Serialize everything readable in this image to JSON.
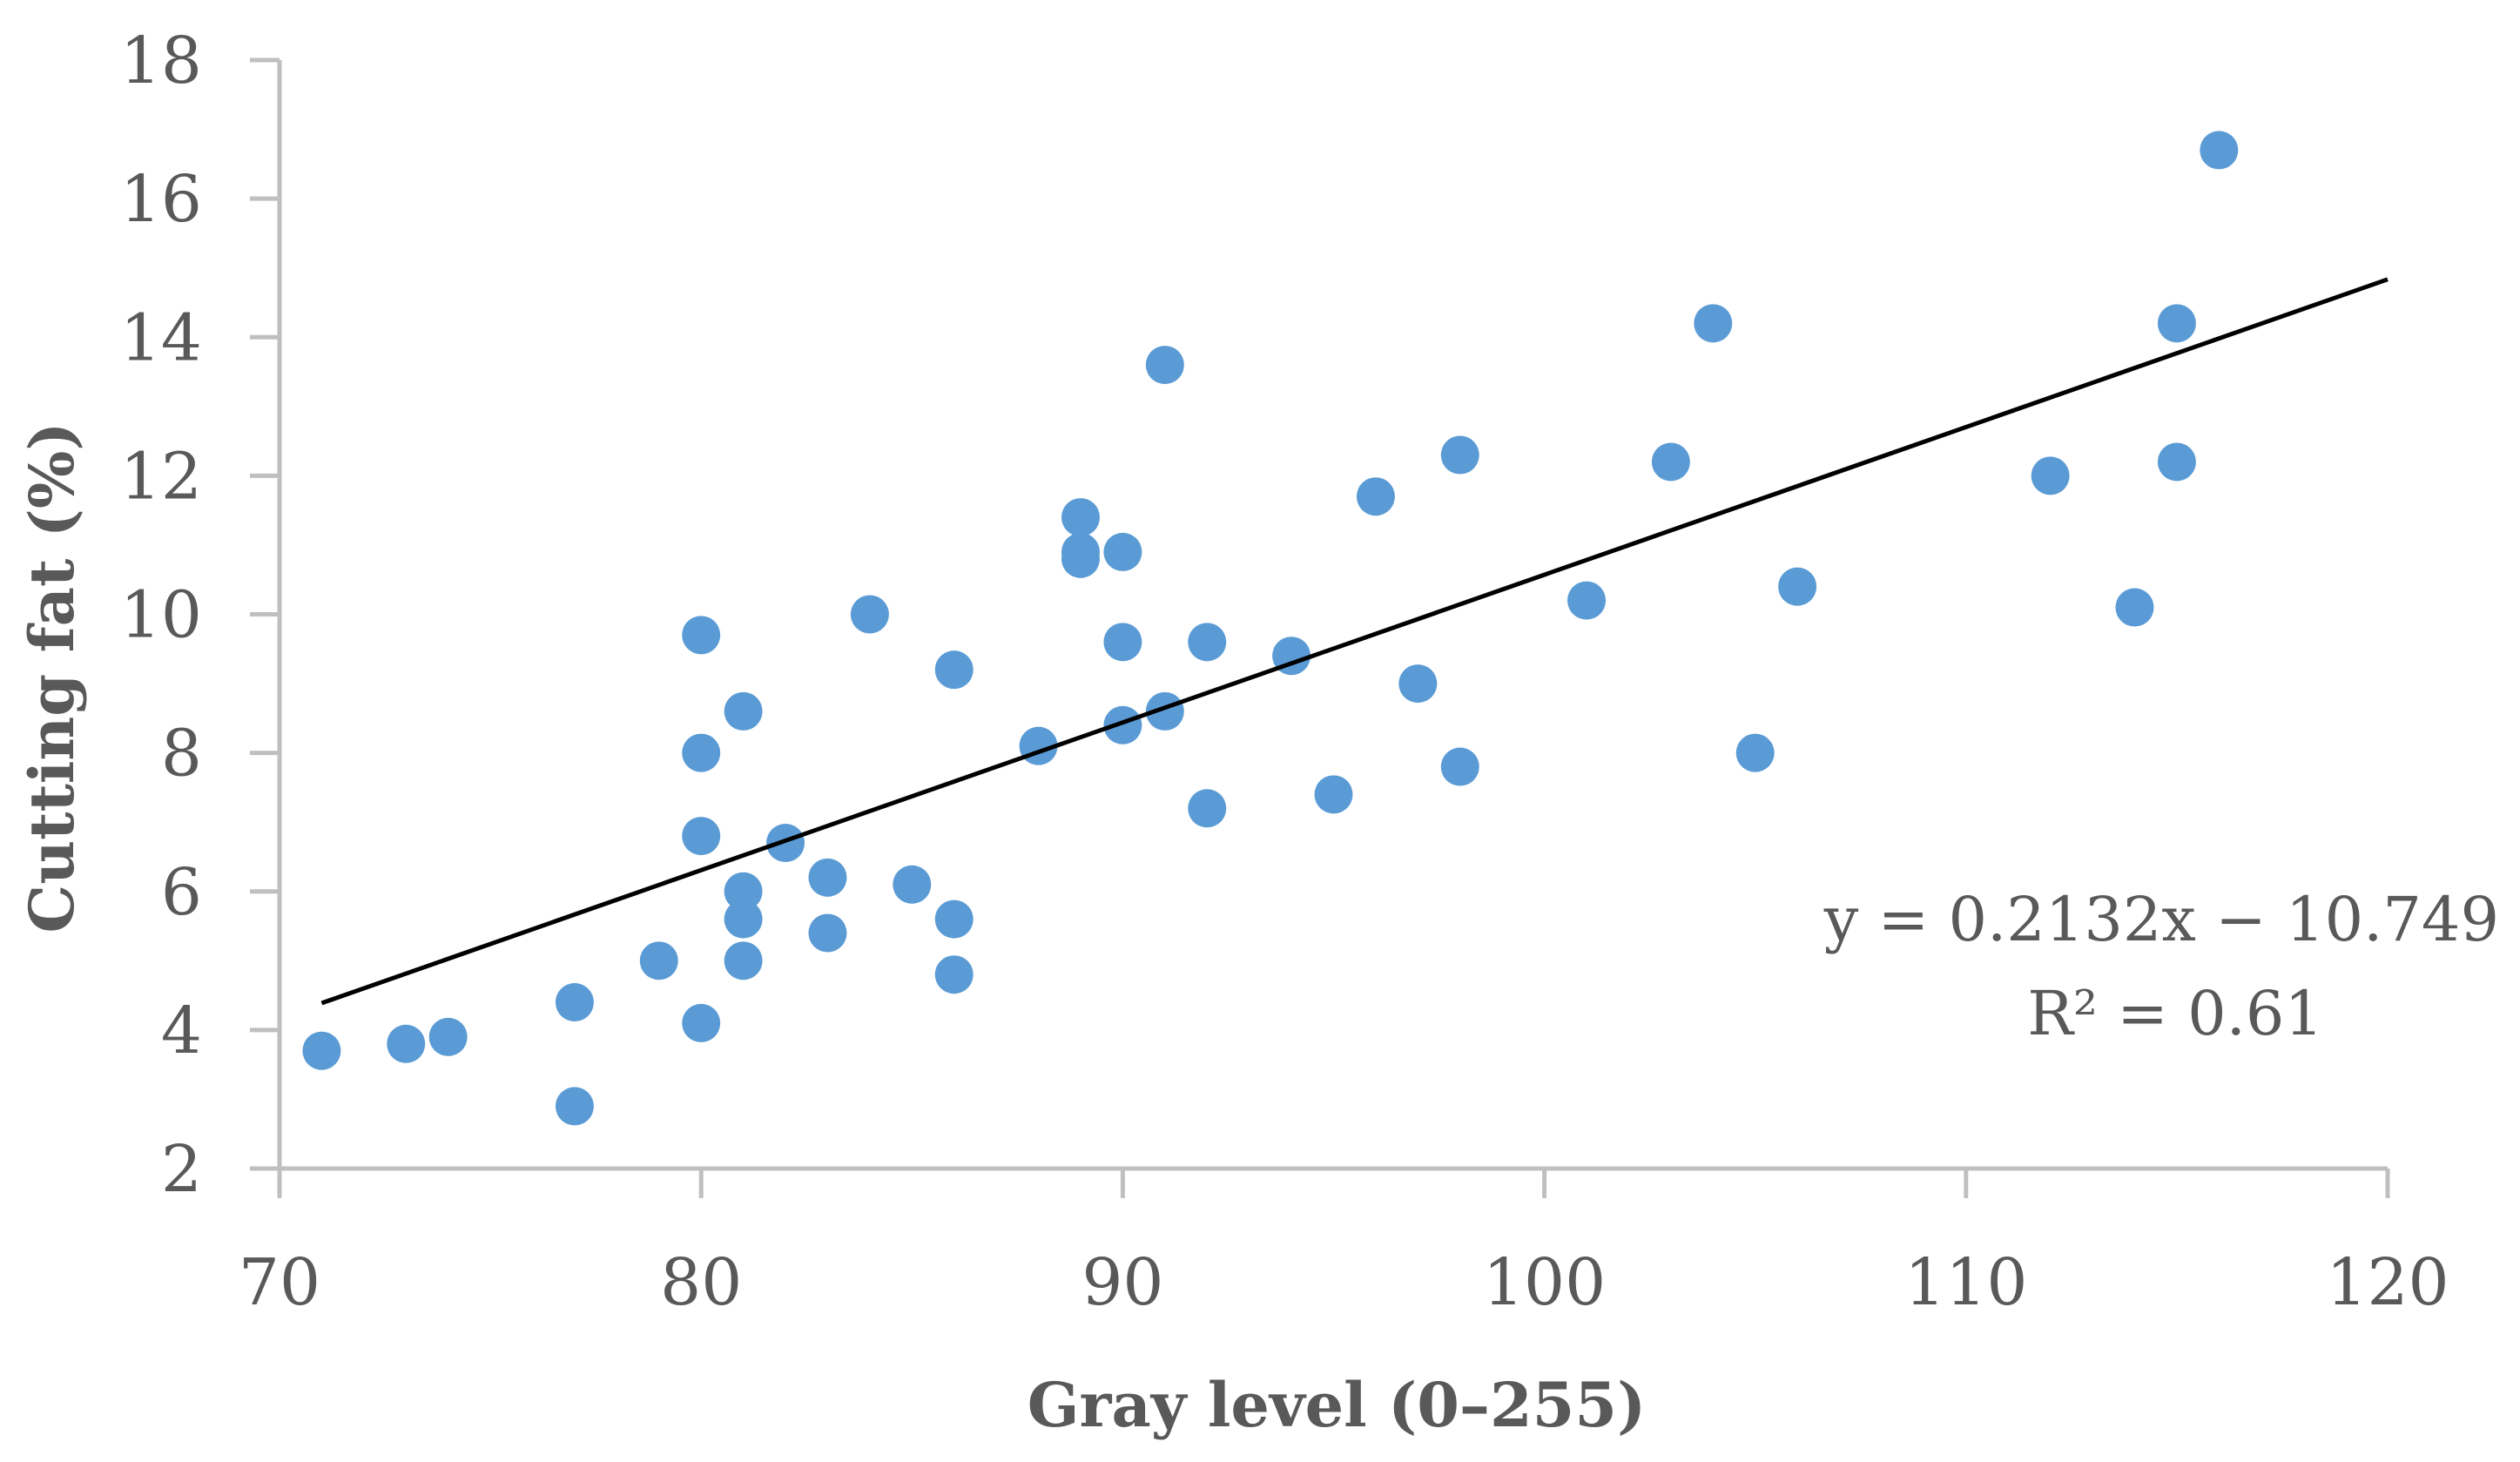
{
  "chart_data": {
    "type": "scatter",
    "title": "",
    "xlabel": "Gray level (0–255)",
    "ylabel": "Cutting fat (%)",
    "xlim": [
      70,
      120
    ],
    "ylim": [
      2,
      18
    ],
    "xticks": [
      70,
      80,
      90,
      100,
      110,
      120
    ],
    "yticks": [
      2,
      4,
      6,
      8,
      10,
      12,
      14,
      16,
      18
    ],
    "grid": false,
    "colors": {
      "points": "#5b9bd5",
      "trendline": "#000000",
      "axis": "#bfbfbf",
      "text": "#595959"
    },
    "series": [
      {
        "name": "Cutting fat",
        "points": [
          [
            71,
            3.7
          ],
          [
            73,
            3.8
          ],
          [
            74,
            3.9
          ],
          [
            77,
            2.9
          ],
          [
            77,
            4.4
          ],
          [
            79,
            5.0
          ],
          [
            80,
            4.1
          ],
          [
            80,
            6.8
          ],
          [
            80,
            8.0
          ],
          [
            80,
            9.7
          ],
          [
            81,
            5.0
          ],
          [
            81,
            5.6
          ],
          [
            81,
            6.0
          ],
          [
            81,
            8.6
          ],
          [
            82,
            6.7
          ],
          [
            83,
            5.4
          ],
          [
            83,
            6.2
          ],
          [
            84,
            10.0
          ],
          [
            85,
            6.1
          ],
          [
            86,
            4.8
          ],
          [
            86,
            5.6
          ],
          [
            86,
            9.2
          ],
          [
            88,
            8.1
          ],
          [
            89,
            10.8
          ],
          [
            89,
            10.9
          ],
          [
            89,
            11.4
          ],
          [
            90,
            8.4
          ],
          [
            90,
            9.6
          ],
          [
            90,
            10.9
          ],
          [
            91,
            8.6
          ],
          [
            91,
            13.6
          ],
          [
            92,
            7.2
          ],
          [
            92,
            9.6
          ],
          [
            94,
            9.4
          ],
          [
            95,
            7.4
          ],
          [
            96,
            11.7
          ],
          [
            97,
            9.0
          ],
          [
            98,
            7.8
          ],
          [
            98,
            12.3
          ],
          [
            101,
            10.2
          ],
          [
            103,
            12.2
          ],
          [
            104,
            14.2
          ],
          [
            105,
            8.0
          ],
          [
            106,
            10.4
          ],
          [
            112,
            12.0
          ],
          [
            114,
            10.1
          ],
          [
            115,
            12.2
          ],
          [
            115,
            14.2
          ],
          [
            116,
            16.7
          ]
        ]
      }
    ],
    "trendline": {
      "type": "linear",
      "slope": 0.2132,
      "intercept": -10.749,
      "x_range": [
        71,
        120
      ],
      "equation": "y = 0.2132x − 10.749",
      "r_squared": "R² = 0.61"
    }
  }
}
